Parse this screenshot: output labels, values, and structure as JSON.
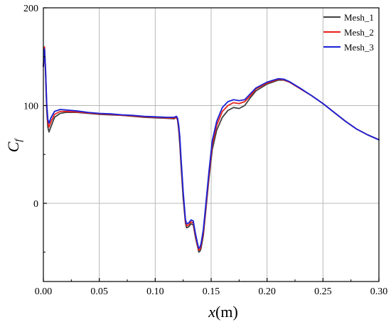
{
  "chart_data": {
    "type": "line",
    "title": "",
    "xlabel": {
      "symbol": "x",
      "unit": "(m)"
    },
    "ylabel": {
      "symbol": "C",
      "subscript": "f"
    },
    "xlim": [
      0,
      0.3
    ],
    "ylim": [
      -80,
      200
    ],
    "x_ticks": [
      0.0,
      0.05,
      0.1,
      0.15,
      0.2,
      0.25,
      0.3
    ],
    "x_tick_labels": [
      "0.00",
      "0.05",
      "0.10",
      "0.15",
      "0.20",
      "0.25",
      "0.30"
    ],
    "y_ticks": [
      0,
      100,
      200
    ],
    "y_tick_labels": [
      "0",
      "100",
      "200"
    ],
    "grid": true,
    "legend_position": "top-right",
    "series": [
      {
        "name": "Mesh_1",
        "color": "#404040",
        "points": [
          [
            0.0,
            140
          ],
          [
            0.001,
            160
          ],
          [
            0.002,
            130
          ],
          [
            0.003,
            95
          ],
          [
            0.004,
            78
          ],
          [
            0.005,
            73
          ],
          [
            0.007,
            79
          ],
          [
            0.01,
            88
          ],
          [
            0.015,
            92
          ],
          [
            0.02,
            93
          ],
          [
            0.03,
            93
          ],
          [
            0.04,
            92
          ],
          [
            0.05,
            91
          ],
          [
            0.06,
            90.5
          ],
          [
            0.07,
            90
          ],
          [
            0.08,
            89
          ],
          [
            0.09,
            88
          ],
          [
            0.1,
            87.5
          ],
          [
            0.11,
            87
          ],
          [
            0.117,
            86.5
          ],
          [
            0.119,
            88
          ],
          [
            0.12,
            85
          ],
          [
            0.121,
            75
          ],
          [
            0.122,
            60
          ],
          [
            0.123,
            40
          ],
          [
            0.125,
            5
          ],
          [
            0.127,
            -20
          ],
          [
            0.128,
            -25
          ],
          [
            0.13,
            -24
          ],
          [
            0.132,
            -21
          ],
          [
            0.134,
            -22
          ],
          [
            0.136,
            -35
          ],
          [
            0.138,
            -45
          ],
          [
            0.139,
            -50
          ],
          [
            0.14,
            -49
          ],
          [
            0.141,
            -46
          ],
          [
            0.143,
            -33
          ],
          [
            0.145,
            -10
          ],
          [
            0.148,
            25
          ],
          [
            0.151,
            55
          ],
          [
            0.155,
            75
          ],
          [
            0.16,
            88
          ],
          [
            0.165,
            95
          ],
          [
            0.17,
            98
          ],
          [
            0.175,
            97
          ],
          [
            0.18,
            100
          ],
          [
            0.185,
            108
          ],
          [
            0.19,
            115
          ],
          [
            0.2,
            122
          ],
          [
            0.21,
            126
          ],
          [
            0.215,
            126
          ],
          [
            0.22,
            124
          ],
          [
            0.23,
            117
          ],
          [
            0.24,
            110
          ],
          [
            0.25,
            102
          ],
          [
            0.26,
            93
          ],
          [
            0.27,
            84
          ],
          [
            0.28,
            76
          ],
          [
            0.29,
            70
          ],
          [
            0.3,
            65
          ]
        ]
      },
      {
        "name": "Mesh_2",
        "color": "#e8201a",
        "points": [
          [
            0.0,
            140
          ],
          [
            0.001,
            160
          ],
          [
            0.002,
            135
          ],
          [
            0.003,
            100
          ],
          [
            0.004,
            83
          ],
          [
            0.005,
            78
          ],
          [
            0.007,
            84
          ],
          [
            0.01,
            91
          ],
          [
            0.015,
            94
          ],
          [
            0.02,
            94
          ],
          [
            0.03,
            93.5
          ],
          [
            0.04,
            92.5
          ],
          [
            0.05,
            91.5
          ],
          [
            0.06,
            91
          ],
          [
            0.07,
            90
          ],
          [
            0.08,
            89.5
          ],
          [
            0.09,
            88.5
          ],
          [
            0.1,
            88
          ],
          [
            0.11,
            87.5
          ],
          [
            0.117,
            87
          ],
          [
            0.119,
            88
          ],
          [
            0.12,
            86
          ],
          [
            0.121,
            78
          ],
          [
            0.122,
            65
          ],
          [
            0.123,
            45
          ],
          [
            0.125,
            10
          ],
          [
            0.127,
            -18
          ],
          [
            0.128,
            -23
          ],
          [
            0.13,
            -22
          ],
          [
            0.132,
            -19
          ],
          [
            0.134,
            -20
          ],
          [
            0.136,
            -33
          ],
          [
            0.138,
            -44
          ],
          [
            0.139,
            -48
          ],
          [
            0.14,
            -47
          ],
          [
            0.141,
            -43
          ],
          [
            0.143,
            -30
          ],
          [
            0.145,
            -7
          ],
          [
            0.148,
            28
          ],
          [
            0.151,
            60
          ],
          [
            0.155,
            80
          ],
          [
            0.16,
            94
          ],
          [
            0.165,
            100
          ],
          [
            0.17,
            103
          ],
          [
            0.175,
            102
          ],
          [
            0.18,
            104
          ],
          [
            0.185,
            110
          ],
          [
            0.19,
            117
          ],
          [
            0.2,
            123
          ],
          [
            0.21,
            127
          ],
          [
            0.215,
            126.5
          ],
          [
            0.22,
            124
          ],
          [
            0.23,
            117
          ],
          [
            0.24,
            110
          ],
          [
            0.25,
            102
          ],
          [
            0.26,
            93
          ],
          [
            0.27,
            84
          ],
          [
            0.28,
            76
          ],
          [
            0.29,
            70
          ],
          [
            0.3,
            65
          ]
        ]
      },
      {
        "name": "Mesh_3",
        "color": "#1a22d6",
        "points": [
          [
            0.0,
            140
          ],
          [
            0.001,
            158
          ],
          [
            0.002,
            136
          ],
          [
            0.003,
            102
          ],
          [
            0.004,
            86
          ],
          [
            0.005,
            82
          ],
          [
            0.007,
            88
          ],
          [
            0.01,
            94
          ],
          [
            0.015,
            96
          ],
          [
            0.02,
            95.5
          ],
          [
            0.03,
            94.5
          ],
          [
            0.04,
            93
          ],
          [
            0.05,
            92
          ],
          [
            0.06,
            91.5
          ],
          [
            0.07,
            90.5
          ],
          [
            0.08,
            90
          ],
          [
            0.09,
            89
          ],
          [
            0.1,
            88.5
          ],
          [
            0.11,
            88
          ],
          [
            0.117,
            88
          ],
          [
            0.119,
            89
          ],
          [
            0.12,
            87
          ],
          [
            0.121,
            80
          ],
          [
            0.122,
            68
          ],
          [
            0.123,
            48
          ],
          [
            0.125,
            12
          ],
          [
            0.127,
            -16
          ],
          [
            0.128,
            -21
          ],
          [
            0.13,
            -20
          ],
          [
            0.132,
            -17
          ],
          [
            0.134,
            -18
          ],
          [
            0.136,
            -31
          ],
          [
            0.138,
            -42
          ],
          [
            0.139,
            -46
          ],
          [
            0.14,
            -45
          ],
          [
            0.141,
            -41
          ],
          [
            0.143,
            -27
          ],
          [
            0.145,
            -4
          ],
          [
            0.148,
            32
          ],
          [
            0.151,
            64
          ],
          [
            0.155,
            84
          ],
          [
            0.16,
            98
          ],
          [
            0.165,
            104
          ],
          [
            0.17,
            106
          ],
          [
            0.175,
            105
          ],
          [
            0.18,
            106
          ],
          [
            0.185,
            112
          ],
          [
            0.19,
            118
          ],
          [
            0.2,
            124
          ],
          [
            0.21,
            127.5
          ],
          [
            0.215,
            127
          ],
          [
            0.22,
            124.5
          ],
          [
            0.23,
            117.5
          ],
          [
            0.24,
            110
          ],
          [
            0.25,
            102
          ],
          [
            0.26,
            93
          ],
          [
            0.27,
            84
          ],
          [
            0.28,
            76
          ],
          [
            0.29,
            70
          ],
          [
            0.3,
            65
          ]
        ]
      }
    ]
  }
}
